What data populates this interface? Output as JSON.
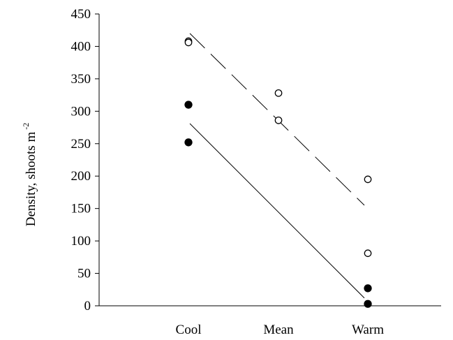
{
  "chart_data": {
    "type": "scatter",
    "title": "",
    "xlabel": "",
    "ylabel": "Density, shoots m",
    "ylabel_superscript": "-2",
    "categories": [
      "Cool",
      "Mean",
      "Warm"
    ],
    "ylim": [
      0,
      450
    ],
    "yticks": [
      0,
      50,
      100,
      150,
      200,
      250,
      300,
      350,
      400,
      450
    ],
    "grid": false,
    "series": [
      {
        "marker": "open-circle",
        "points": [
          {
            "x": "Cool",
            "y": 408
          },
          {
            "x": "Cool",
            "y": 406
          },
          {
            "x": "Mean",
            "y": 328
          },
          {
            "x": "Mean",
            "y": 286
          },
          {
            "x": "Warm",
            "y": 195
          },
          {
            "x": "Warm",
            "y": 81
          }
        ],
        "fit_line": {
          "style": "dashed",
          "from": {
            "x": "Cool",
            "y": 420
          },
          "to": {
            "x": "Warm",
            "y": 155
          }
        }
      },
      {
        "marker": "filled-circle",
        "points": [
          {
            "x": "Cool",
            "y": 310
          },
          {
            "x": "Cool",
            "y": 252
          },
          {
            "x": "Warm",
            "y": 27
          },
          {
            "x": "Warm",
            "y": 3
          }
        ],
        "fit_line": {
          "style": "solid",
          "from": {
            "x": "Cool",
            "y": 281
          },
          "to": {
            "x": "Warm",
            "y": 12
          }
        }
      }
    ]
  }
}
